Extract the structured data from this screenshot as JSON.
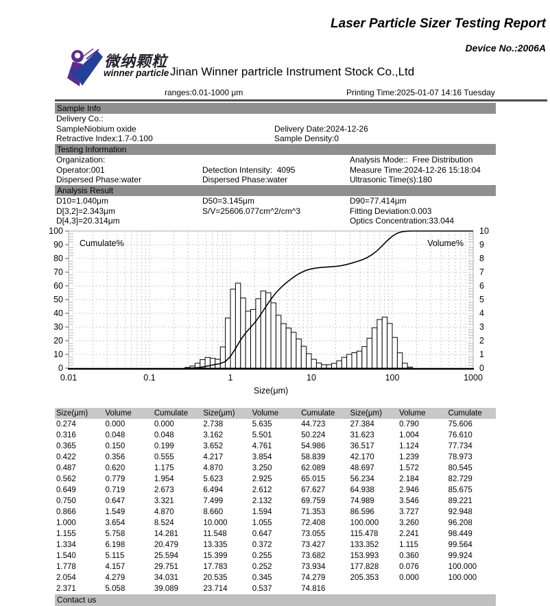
{
  "header": {
    "title": "Laser Particle Sizer Testing Report",
    "device_no": "Device No.:2006A",
    "company": "Jinan Winner partricle Instrument Stock Co.,Ltd",
    "ranges": "ranges:0.01-1000 μm",
    "printing_time": "Printing Time:2025-01-07 14:16 Tuesday",
    "logo": {
      "text_cn": "微纳颗粒",
      "text_en": "winner particle"
    }
  },
  "sample_info": {
    "header": "Sample Info",
    "delivery_co": "Delivery Co.:",
    "sample": "SampleNiobium oxide",
    "delivery_date": "Delivery Date:2024-12-26",
    "retractive_index": "Retractive Index:1.7-0.100",
    "sample_density": "Sample Density:0"
  },
  "testing_information": {
    "header": "Testing Information",
    "organization": "Organization:",
    "analysis_mode": "Analysis Mode::  Free Distribution",
    "operator": "Operator:001",
    "detection_intensity": "Detection Intensity:  4095",
    "measure_time": "Measure Time:2024-12-26 15:18:04",
    "dispersed_phase_1": "Dispersed Phase:water",
    "dispersed_phase_2": "Dispersed Phase:water",
    "ultrasonic_time": "Ultrasonic Time(s):180"
  },
  "analysis_result": {
    "header": "Analysis Result",
    "d10": "D10=1.040μm",
    "d50": "D50=3.145μm",
    "d90": "D90=77.414μm",
    "d32": "D[3,2]=2.343μm",
    "sv": "S/V=25606.077cm^2/cm^3",
    "fitting_deviation": "Fitting Deviation:0.003",
    "d43": "D[4,3]=20.314μm",
    "optics_concentration": "Optics Concentration:33.044"
  },
  "chart_data": {
    "type": "bar",
    "subtype": "log-histogram with cumulative line",
    "x_axis": {
      "label": "Size(μm)",
      "scale": "log",
      "min": 0.01,
      "max": 1000,
      "tick_labels": [
        "0.01",
        "0.1",
        "1",
        "10",
        "100",
        "1000"
      ]
    },
    "left_axis": {
      "label": "Cumulate%",
      "min": 0,
      "max": 100,
      "step": 10
    },
    "right_axis": {
      "label": "Volume%",
      "min": 0,
      "max": 10,
      "step": 1
    },
    "legend_position": "inside-top",
    "grid": true,
    "series": [
      {
        "name": "Volume%",
        "type": "bar",
        "axis": "right"
      },
      {
        "name": "Cumulate%",
        "type": "line",
        "axis": "left"
      }
    ],
    "sizes": [
      0.274,
      0.316,
      0.365,
      0.422,
      0.487,
      0.562,
      0.649,
      0.75,
      0.866,
      1.0,
      1.155,
      1.334,
      1.54,
      1.778,
      2.054,
      2.371,
      2.738,
      3.162,
      3.652,
      4.217,
      4.87,
      5.623,
      6.494,
      7.499,
      8.66,
      10.0,
      11.548,
      13.335,
      15.399,
      17.783,
      20.535,
      23.714,
      27.384,
      31.623,
      36.517,
      42.17,
      48.697,
      56.234,
      64.938,
      74.989,
      86.596,
      100.0,
      115.478,
      133.352,
      153.993,
      177.828,
      205.353
    ],
    "volume": [
      0.0,
      0.048,
      0.15,
      0.356,
      0.62,
      0.779,
      0.719,
      0.647,
      1.549,
      3.654,
      5.758,
      6.198,
      5.115,
      4.157,
      4.279,
      5.058,
      5.635,
      5.501,
      4.761,
      3.854,
      3.25,
      2.925,
      2.612,
      2.132,
      1.594,
      1.055,
      0.647,
      0.372,
      0.255,
      0.252,
      0.345,
      0.537,
      0.79,
      1.004,
      1.124,
      1.239,
      1.572,
      2.184,
      2.946,
      3.546,
      3.727,
      3.26,
      2.241,
      1.115,
      0.36,
      0.076,
      0.0
    ],
    "cumulate": [
      0.0,
      0.048,
      0.199,
      0.555,
      1.175,
      1.954,
      2.673,
      3.321,
      4.87,
      8.524,
      14.281,
      20.479,
      25.594,
      29.751,
      34.031,
      39.089,
      44.723,
      50.224,
      54.986,
      58.839,
      62.089,
      65.015,
      67.627,
      69.759,
      71.353,
      72.408,
      73.055,
      73.427,
      73.682,
      73.934,
      74.279,
      74.816,
      75.606,
      76.61,
      77.734,
      78.973,
      80.545,
      82.729,
      85.675,
      89.221,
      92.948,
      96.208,
      98.449,
      99.564,
      99.924,
      100.0,
      100.0
    ]
  },
  "table": {
    "headers": [
      "Size(μm)",
      "Volume",
      "Cumulate",
      "Size(μm)",
      "Volume",
      "Cumulate",
      "Size(μm)",
      "Volume",
      "Cumulate"
    ],
    "rows": [
      [
        "0.274",
        "0.000",
        "0.000",
        "2.738",
        "5.635",
        "44.723",
        "27.384",
        "0.790",
        "75.606"
      ],
      [
        "0.316",
        "0.048",
        "0.048",
        "3.162",
        "5.501",
        "50.224",
        "31.623",
        "1.004",
        "76.610"
      ],
      [
        "0.365",
        "0.150",
        "0.199",
        "3.652",
        "4.761",
        "54.986",
        "36.517",
        "1.124",
        "77.734"
      ],
      [
        "0.422",
        "0.356",
        "0.555",
        "4.217",
        "3.854",
        "58.839",
        "42.170",
        "1.239",
        "78.973"
      ],
      [
        "0.487",
        "0.620",
        "1.175",
        "4.870",
        "3.250",
        "62.089",
        "48.697",
        "1.572",
        "80.545"
      ],
      [
        "0.562",
        "0.779",
        "1.954",
        "5.623",
        "2.925",
        "65.015",
        "56.234",
        "2.184",
        "82.729"
      ],
      [
        "0.649",
        "0.719",
        "2.673",
        "6.494",
        "2.612",
        "67.627",
        "64.938",
        "2.946",
        "85.675"
      ],
      [
        "0.750",
        "0.647",
        "3.321",
        "7.499",
        "2.132",
        "69.759",
        "74.989",
        "3.546",
        "89.221"
      ],
      [
        "0.866",
        "1.549",
        "4.870",
        "8.660",
        "1.594",
        "71.353",
        "86.596",
        "3.727",
        "92.948"
      ],
      [
        "1.000",
        "3.654",
        "8.524",
        "10.000",
        "1.055",
        "72.408",
        "100.000",
        "3.260",
        "96.208"
      ],
      [
        "1.155",
        "5.758",
        "14.281",
        "11.548",
        "0.647",
        "73.055",
        "115.478",
        "2.241",
        "98.449"
      ],
      [
        "1.334",
        "6.198",
        "20.479",
        "13.335",
        "0.372",
        "73.427",
        "133.352",
        "1.115",
        "99.564"
      ],
      [
        "1.540",
        "5.115",
        "25.594",
        "15.399",
        "0.255",
        "73.682",
        "153.993",
        "0.360",
        "99.924"
      ],
      [
        "1.778",
        "4.157",
        "29.751",
        "17.783",
        "0.252",
        "73.934",
        "177.828",
        "0.076",
        "100.000"
      ],
      [
        "2.054",
        "4.279",
        "34.031",
        "20.535",
        "0.345",
        "74.279",
        "205.353",
        "0.000",
        "100.000"
      ],
      [
        "2.371",
        "5.058",
        "39.089",
        "23.714",
        "0.537",
        "74.816",
        "",
        "",
        ""
      ]
    ]
  },
  "footer": {
    "contact": "Contact us"
  },
  "colors": {
    "section_bar": "#8f8f8f",
    "table_header_bar": "#c8c8c8",
    "contact_bar": "#bfbfbf",
    "rule": "#4c4c4c",
    "logo_purple": "#5b2d8e",
    "logo_blue": "#23419a"
  }
}
